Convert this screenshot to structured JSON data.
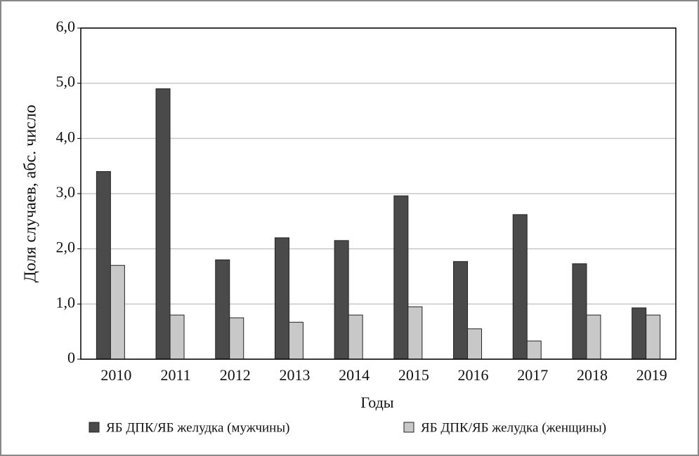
{
  "chart_data": {
    "type": "bar",
    "x_label": "Годы",
    "y_label": "Доля случаев, абс. число",
    "categories": [
      "2010",
      "2011",
      "2012",
      "2013",
      "2014",
      "2015",
      "2016",
      "2017",
      "2018",
      "2019"
    ],
    "series": [
      {
        "name": "ЯБ ДПК/ЯБ желудка (мужчины)",
        "color": "#4a4a4a",
        "values": [
          3.4,
          4.9,
          1.8,
          2.2,
          2.15,
          2.96,
          1.77,
          2.62,
          1.73,
          0.93
        ]
      },
      {
        "name": "ЯБ ДПК/ЯБ желудка (женщины)",
        "color": "#c8c8c8",
        "values": [
          1.7,
          0.8,
          0.75,
          0.67,
          0.8,
          0.95,
          0.55,
          0.33,
          0.8,
          0.8
        ]
      }
    ],
    "ylim": [
      0,
      6
    ],
    "yticks": [
      0,
      {
        "value": 1,
        "label": "1,0"
      },
      {
        "value": 2,
        "label": "2,0"
      },
      {
        "value": 3,
        "label": "3,0"
      },
      {
        "value": 4,
        "label": "4,0"
      },
      {
        "value": 5,
        "label": "5,0"
      },
      {
        "value": 6,
        "label": "6,0"
      }
    ],
    "grid": true,
    "legend": "bottom"
  }
}
